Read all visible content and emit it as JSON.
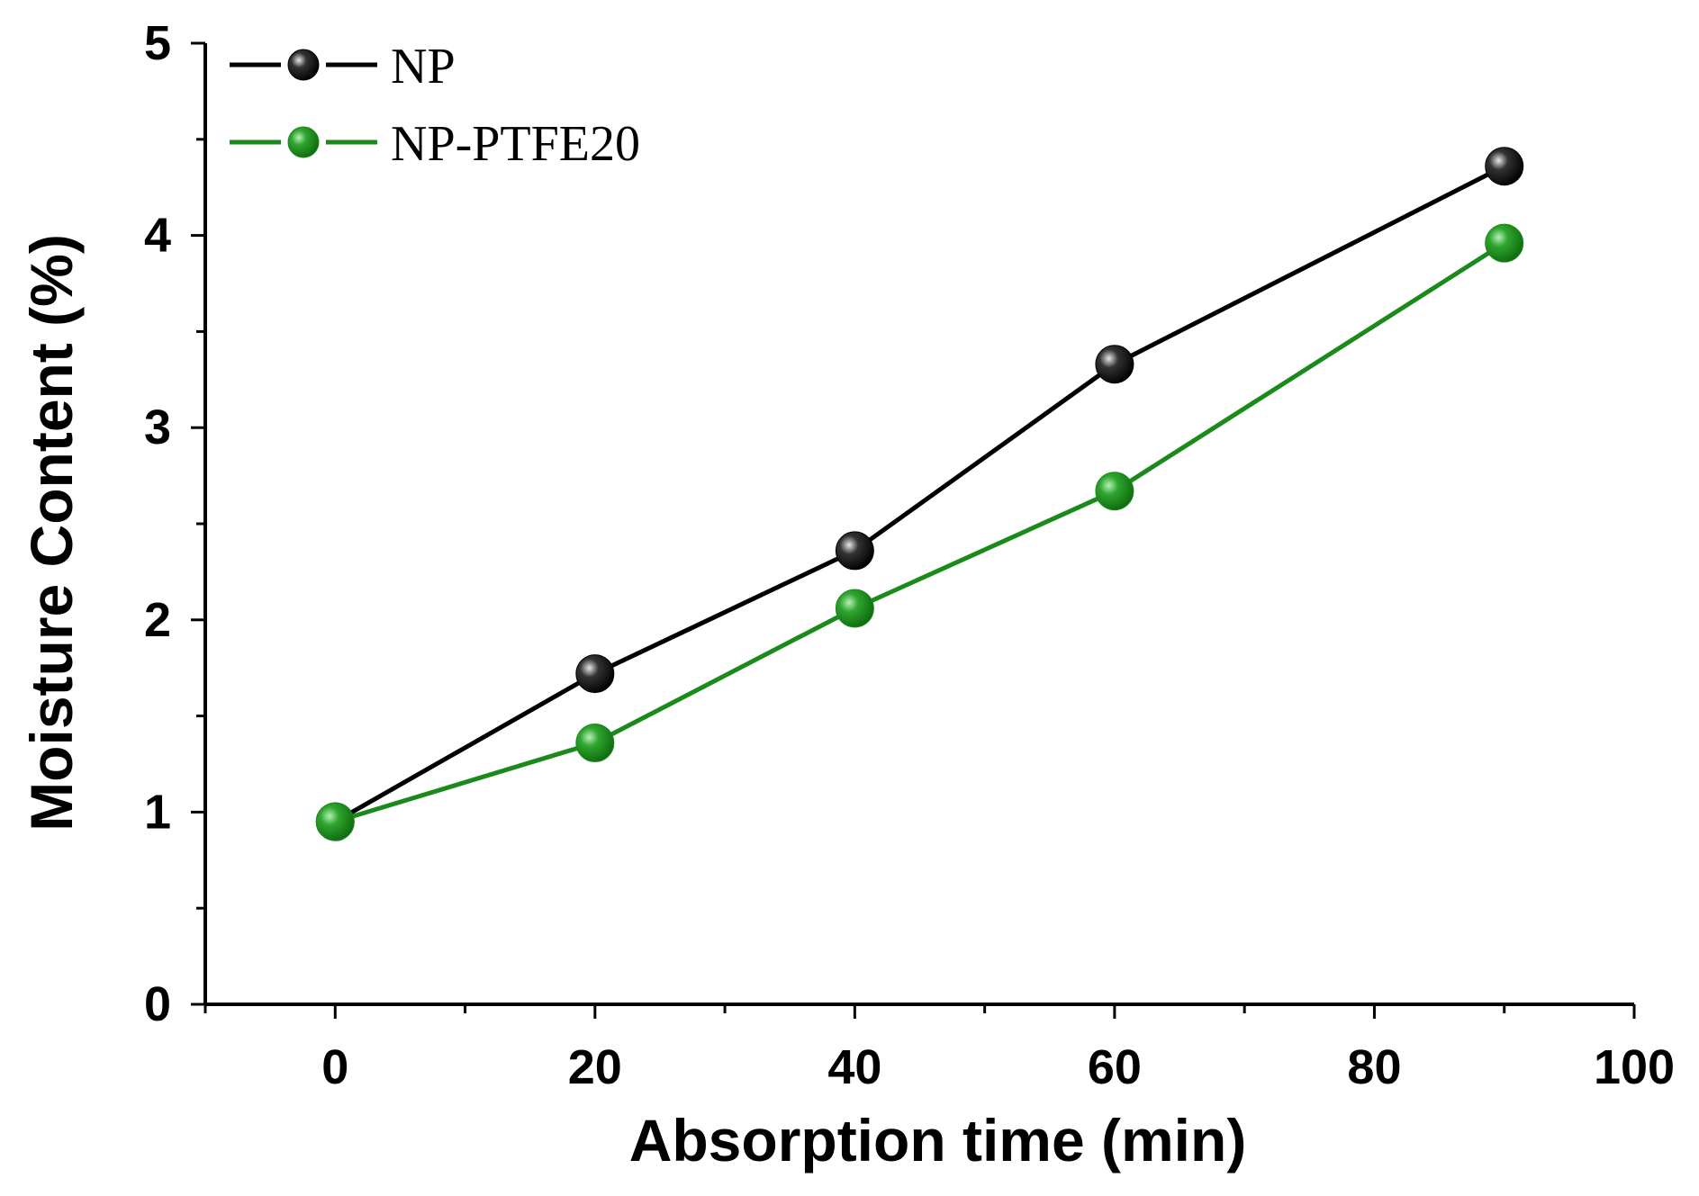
{
  "chart_data": {
    "type": "line",
    "title": "",
    "xlabel": "Absorption time (min)",
    "ylabel": "Moisture Content (%)",
    "xlim": [
      -10,
      100
    ],
    "ylim": [
      0,
      5
    ],
    "xticks": [
      0,
      20,
      40,
      60,
      80,
      100
    ],
    "yticks": [
      0,
      1,
      2,
      3,
      4,
      5
    ],
    "grid": false,
    "legend_position": "top-left",
    "x": [
      0,
      20,
      40,
      60,
      90
    ],
    "series": [
      {
        "name": "NP",
        "color": "#000000",
        "values": [
          0.95,
          1.72,
          2.36,
          3.33,
          4.36
        ]
      },
      {
        "name": "NP-PTFE20",
        "color": "#1a8a1a",
        "values": [
          0.95,
          1.36,
          2.06,
          2.67,
          3.96
        ]
      }
    ]
  }
}
